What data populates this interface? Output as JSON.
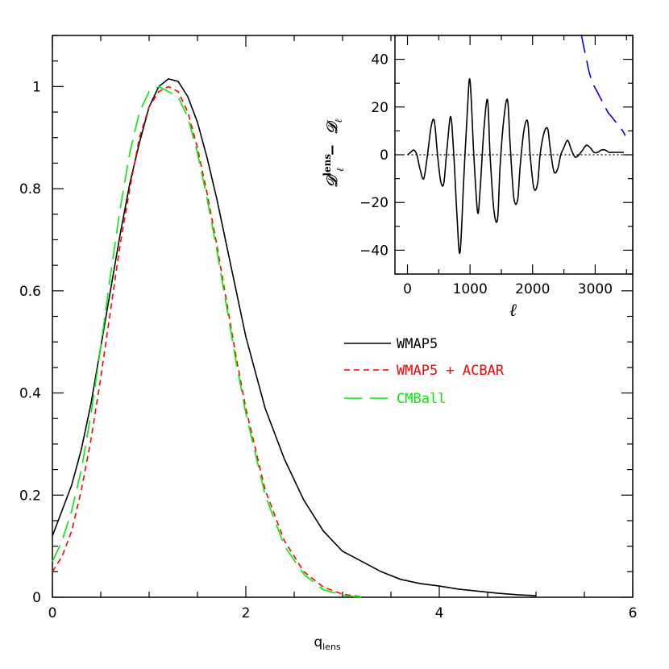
{
  "chart_data": [
    {
      "type": "line",
      "xlabel": "q",
      "xlabel_sub": "lens",
      "ylabel": "",
      "xlim": [
        0,
        6
      ],
      "ylim": [
        0,
        1.1
      ],
      "xticks": [
        0,
        2,
        4,
        6
      ],
      "yticks": [
        0,
        0.2,
        0.4,
        0.6,
        0.8,
        1
      ],
      "xtick_labels": [
        "0",
        "2",
        "4",
        "6"
      ],
      "ytick_labels": [
        "0",
        "0.2",
        "0.4",
        "0.6",
        "0.8",
        "1"
      ],
      "grid": false,
      "legend_position": "right-middle",
      "series": [
        {
          "name": "WMAP5",
          "color": "#000000",
          "dash": "solid",
          "x": [
            0,
            0.1,
            0.2,
            0.3,
            0.4,
            0.5,
            0.6,
            0.7,
            0.8,
            0.9,
            1.0,
            1.1,
            1.2,
            1.3,
            1.4,
            1.5,
            1.6,
            1.7,
            1.8,
            1.9,
            2.0,
            2.2,
            2.4,
            2.6,
            2.8,
            3.0,
            3.2,
            3.4,
            3.6,
            3.8,
            4.0,
            4.2,
            4.4,
            4.6,
            4.8,
            5.0
          ],
          "y": [
            0.12,
            0.17,
            0.22,
            0.29,
            0.38,
            0.49,
            0.6,
            0.71,
            0.81,
            0.89,
            0.96,
            1.0,
            1.015,
            1.01,
            0.98,
            0.93,
            0.86,
            0.78,
            0.69,
            0.6,
            0.51,
            0.37,
            0.27,
            0.19,
            0.13,
            0.09,
            0.07,
            0.05,
            0.035,
            0.027,
            0.022,
            0.016,
            0.012,
            0.008,
            0.005,
            0.003
          ]
        },
        {
          "name": "WMAP5 + ACBAR",
          "color": "#ff0000",
          "dash": "short",
          "x": [
            0,
            0.1,
            0.2,
            0.3,
            0.4,
            0.5,
            0.6,
            0.7,
            0.8,
            0.9,
            1.0,
            1.1,
            1.2,
            1.3,
            1.4,
            1.5,
            1.6,
            1.7,
            1.8,
            1.9,
            2.0,
            2.2,
            2.4,
            2.6,
            2.8,
            3.0,
            3.2
          ],
          "y": [
            0.05,
            0.08,
            0.13,
            0.21,
            0.31,
            0.43,
            0.56,
            0.69,
            0.8,
            0.9,
            0.96,
            0.99,
            1.0,
            0.99,
            0.95,
            0.88,
            0.79,
            0.69,
            0.58,
            0.47,
            0.37,
            0.21,
            0.11,
            0.05,
            0.02,
            0.006,
            0.001
          ]
        },
        {
          "name": "CMBall",
          "color": "#00ee00",
          "dash": "long",
          "x": [
            0,
            0.1,
            0.2,
            0.3,
            0.4,
            0.5,
            0.6,
            0.7,
            0.8,
            0.9,
            1.0,
            1.1,
            1.2,
            1.3,
            1.4,
            1.5,
            1.6,
            1.7,
            1.8,
            1.9,
            2.0,
            2.2,
            2.4,
            2.6,
            2.8,
            3.0,
            3.2
          ],
          "y": [
            0.07,
            0.11,
            0.17,
            0.25,
            0.36,
            0.49,
            0.63,
            0.76,
            0.87,
            0.95,
            0.99,
            1.0,
            0.99,
            0.98,
            0.94,
            0.87,
            0.78,
            0.68,
            0.57,
            0.46,
            0.36,
            0.2,
            0.1,
            0.045,
            0.015,
            0.004,
            0.0
          ]
        }
      ]
    },
    {
      "type": "line",
      "xlabel": "ℓ",
      "ylabel_main": "𝒟",
      "ylabel_sup": "lens",
      "ylabel_sub": "ℓ",
      "ylabel_minus": "−",
      "ylabel_end": "𝒟",
      "ylabel_end_sub": "ℓ",
      "xlim": [
        -200,
        3600
      ],
      "ylim": [
        -50,
        50
      ],
      "xticks": [
        0,
        1000,
        2000,
        3000
      ],
      "yticks": [
        -40,
        -20,
        0,
        20,
        40
      ],
      "xtick_labels": [
        "0",
        "1000",
        "2000",
        "3000"
      ],
      "ytick_labels": [
        "−40",
        "−20",
        "0",
        "20",
        "40"
      ],
      "zero_line": true,
      "series": [
        {
          "color": "#000000",
          "dash": "solid",
          "x": [
            0,
            50,
            100,
            150,
            200,
            260,
            320,
            380,
            430,
            480,
            530,
            580,
            630,
            690,
            740,
            790,
            840,
            900,
            960,
            1000,
            1060,
            1120,
            1160,
            1220,
            1280,
            1320,
            1380,
            1440,
            1480,
            1540,
            1600,
            1640,
            1700,
            1760,
            1800,
            1860,
            1920,
            1960,
            2020,
            2080,
            2120,
            2180,
            2240,
            2280,
            2340,
            2400,
            2450,
            2500,
            2560,
            2620,
            2680,
            2740,
            2800,
            2860,
            2920,
            2980,
            3040,
            3100,
            3160,
            3220,
            3280,
            3340,
            3400,
            3460
          ],
          "y": [
            0,
            1,
            2,
            0,
            -6,
            -10,
            0,
            12,
            14,
            0,
            -11,
            -12,
            2,
            16,
            0,
            -25,
            -41,
            -10,
            20,
            31,
            0,
            -24,
            -15,
            10,
            23,
            0,
            -23,
            -27,
            -5,
            15,
            23,
            5,
            -18,
            -19,
            -5,
            10,
            14,
            0,
            -14,
            -12,
            0,
            9,
            11,
            3,
            -7,
            -6,
            0,
            3,
            6,
            2,
            -1,
            0,
            2,
            4,
            3,
            1,
            1,
            2,
            2,
            1,
            1,
            1,
            1,
            1
          ]
        },
        {
          "color": "#0000dd",
          "dash": "long",
          "x": [
            2780,
            2820,
            2860,
            2900,
            2960,
            3020,
            3080,
            3140,
            3200,
            3260,
            3320,
            3380,
            3440,
            3480
          ],
          "y": [
            50,
            45,
            40,
            35,
            30,
            27,
            24,
            21,
            18,
            16,
            14,
            12,
            10,
            8
          ]
        }
      ]
    }
  ]
}
